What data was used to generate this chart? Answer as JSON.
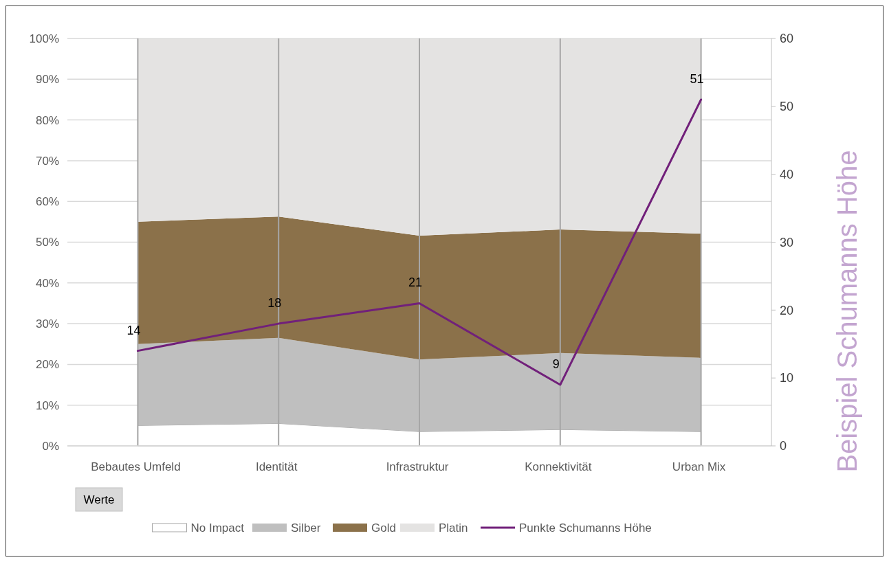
{
  "chart_data": {
    "type": "area",
    "stacked": true,
    "categories": [
      "Bebautes Umfeld",
      "Identität",
      "Infrastruktur",
      "Konnektivität",
      "Urban Mix"
    ],
    "series": [
      {
        "name": "No Impact",
        "color": "#ffffff",
        "values": [
          5,
          5.5,
          3.5,
          4,
          3.5
        ]
      },
      {
        "name": "Silber",
        "color": "#bfbfbf",
        "values": [
          20,
          21,
          17.7,
          18.8,
          18.1
        ]
      },
      {
        "name": "Gold",
        "color": "#8b714a",
        "values": [
          30,
          29.8,
          30.4,
          30.3,
          30.5
        ]
      },
      {
        "name": "Platin",
        "color": "#e4e3e2",
        "values": [
          45,
          43.7,
          48.4,
          46.9,
          47.9
        ]
      },
      {
        "name": "Punkte Schumanns Höhe",
        "type": "line",
        "axis": "y2",
        "color": "#71207a",
        "values": [
          14,
          18,
          21,
          9,
          51
        ],
        "value_labels": [
          "14",
          "18",
          "21",
          "9",
          "51"
        ]
      }
    ],
    "ylim": [
      0,
      100
    ],
    "yticks": [
      {
        "value": 0,
        "label": "0%"
      },
      {
        "value": 10,
        "label": "10%"
      },
      {
        "value": 20,
        "label": "20%"
      },
      {
        "value": 30,
        "label": "30%"
      },
      {
        "value": 40,
        "label": "40%"
      },
      {
        "value": 50,
        "label": "50%"
      },
      {
        "value": 60,
        "label": "60%"
      },
      {
        "value": 70,
        "label": "70%"
      },
      {
        "value": 80,
        "label": "80%"
      },
      {
        "value": 90,
        "label": "90%"
      },
      {
        "value": 100,
        "label": "100%"
      }
    ],
    "y2lim": [
      0,
      60
    ],
    "y2ticks": [
      0,
      10,
      20,
      30,
      40,
      50,
      60
    ],
    "y2label": "Beispiel Schumanns Höhe",
    "annotations": [
      "Werte"
    ],
    "grid": true,
    "legend": "bottom"
  }
}
